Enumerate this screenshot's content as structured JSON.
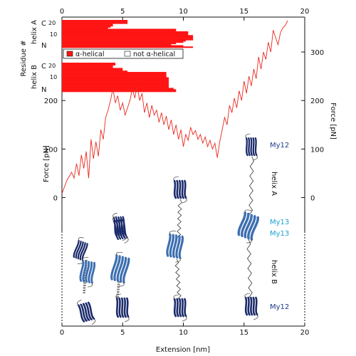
{
  "colors": {
    "force_trace": "#e8281e",
    "helix_cells": "#ff1414",
    "axis": "#111111",
    "domain_dark": "#1a2a6a",
    "domain_mid": "#3d6fb0",
    "label_dark": "#1f3b8a",
    "label_light": "#1ea0d6"
  },
  "chart_data": {
    "type": "line",
    "xlabel": "Extension [nm]",
    "ylabel_left": "Force [pN]",
    "ylabel_right": "Force [pN]",
    "xlim": [
      0,
      20
    ],
    "xticks": [
      "0",
      "5",
      "10",
      "15",
      "20"
    ],
    "ylim": [
      -265,
      372
    ],
    "yticks_left": [
      "0",
      "100",
      "200"
    ],
    "yticks_right": [
      "0",
      "100",
      "200",
      "300"
    ],
    "series": [
      {
        "x": [
          0.0,
          0.4,
          0.8,
          1.0,
          1.2,
          1.4,
          1.6,
          1.8,
          2.0,
          2.2,
          2.4,
          2.6,
          2.8,
          3.0,
          3.2,
          3.4,
          3.6,
          3.8,
          4.0,
          4.2,
          4.4,
          4.6,
          4.8,
          5.0,
          5.2,
          5.4,
          5.6,
          5.8,
          6.0,
          6.2,
          6.4,
          6.6,
          6.8,
          7.0,
          7.2,
          7.4,
          7.6,
          7.8,
          8.0,
          8.2,
          8.4,
          8.6,
          8.8,
          9.0,
          9.2,
          9.4,
          9.6,
          9.8,
          10.0,
          10.2,
          10.4,
          10.6,
          10.8,
          11.0,
          11.2,
          11.4,
          11.6,
          11.8,
          12.0,
          12.2,
          12.4,
          12.6,
          12.8,
          13.0,
          13.2,
          13.4,
          13.6,
          13.8,
          14.0,
          14.2,
          14.4,
          14.6,
          14.8,
          15.0,
          15.2,
          15.4,
          15.6,
          15.8,
          16.0,
          16.2,
          16.4,
          16.6,
          16.8,
          17.0,
          17.2,
          17.4,
          17.6,
          17.8,
          18.0,
          18.2,
          18.4,
          18.6
        ],
        "y": [
          8,
          35,
          52,
          40,
          70,
          45,
          88,
          60,
          95,
          40,
          120,
          80,
          115,
          85,
          140,
          120,
          165,
          180,
          200,
          225,
          195,
          210,
          180,
          195,
          170,
          185,
          200,
          225,
          205,
          230,
          200,
          215,
          175,
          195,
          165,
          190,
          170,
          180,
          155,
          175,
          150,
          168,
          140,
          160,
          130,
          150,
          120,
          140,
          105,
          130,
          118,
          145,
          130,
          138,
          120,
          130,
          112,
          125,
          105,
          118,
          100,
          112,
          82,
          115,
          140,
          165,
          150,
          190,
          175,
          205,
          185,
          220,
          200,
          240,
          215,
          250,
          230,
          265,
          245,
          290,
          265,
          300,
          285,
          320,
          300,
          345,
          330,
          315,
          340,
          350,
          355,
          365
        ]
      }
    ],
    "annotations": {
      "my12_top": "My12",
      "helix_a": "helix A",
      "my13_upper": "My13",
      "my13_lower": "My13",
      "helix_b": "helix B",
      "my12_bottom": "My12"
    }
  },
  "helix_panel": {
    "y_group_label": "Residue #",
    "helix_a_label": "helix A",
    "helix_b_label": "helix B",
    "c_label": "C",
    "n_label": "N",
    "tick_20": "20",
    "tick_10": "10",
    "legend_alpha": "α-helical",
    "legend_not": "not α-helical",
    "helix_a_rows_end_nm": [
      5.4,
      5.4,
      5.4,
      4.2,
      4.2,
      4.0,
      3.8,
      9.4,
      9.4,
      10.4,
      10.4,
      10.4,
      10.8,
      10.8,
      10.8,
      10.8,
      10.2,
      10.0,
      9.4,
      9.0,
      10.0,
      10.8
    ],
    "helix_b_rows_end_nm": [
      4.4,
      4.4,
      4.2,
      4.2,
      5.0,
      5.0,
      5.4,
      8.6,
      8.6,
      8.6,
      8.6,
      8.8,
      8.8,
      8.8,
      8.8,
      8.8,
      8.8,
      8.8,
      8.8,
      9.2,
      9.4,
      9.4
    ]
  }
}
